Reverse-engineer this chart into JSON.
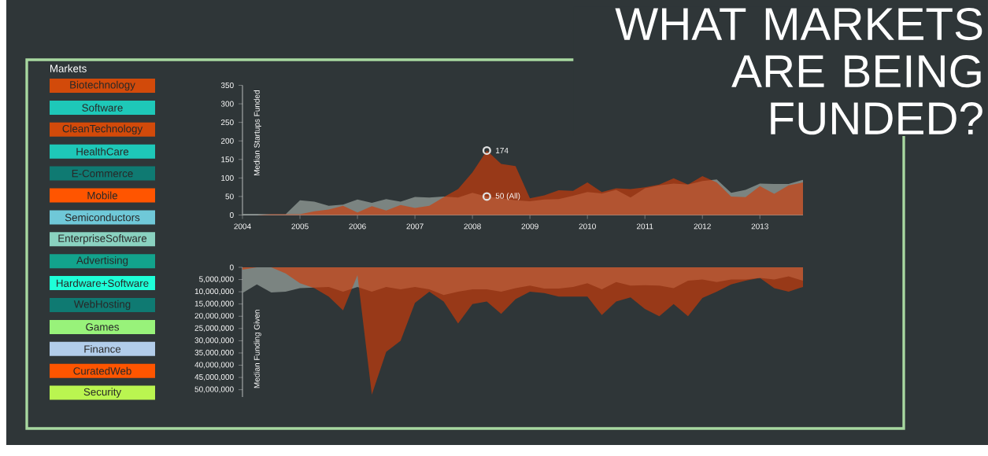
{
  "chart_data": [
    {
      "type": "other",
      "legend_title": "Markets",
      "categories": [
        "Biotechnology",
        "Software",
        "CleanTechnology",
        "HealthCare",
        "E-Commerce",
        "Mobile",
        "Semiconductors",
        "EnterpriseSoftware",
        "Advertising",
        "Hardware+Software",
        "WebHosting",
        "Games",
        "Finance",
        "CuratedWeb",
        "Security"
      ],
      "colors": [
        "#d24a0a",
        "#1ec8b8",
        "#d24a0a",
        "#1ec8b8",
        "#0f7a72",
        "#ff5500",
        "#6fc8d8",
        "#8ad2c0",
        "#12a38c",
        "#1effd8",
        "#0f7a72",
        "#98f27a",
        "#b2cdea",
        "#ff5500",
        "#baf550"
      ]
    },
    {
      "type": "area",
      "title": "WHAT MARKETS ARE BEING FUNDED?",
      "ylabel": "Median Startups Funded",
      "x": [
        "2004-01",
        "2004-04",
        "2004-07",
        "2004-10",
        "2005-01",
        "2005-04",
        "2005-07",
        "2005-10",
        "2006-01",
        "2006-04",
        "2006-07",
        "2006-10",
        "2007-01",
        "2007-04",
        "2007-07",
        "2007-10",
        "2008-01",
        "2008-04",
        "2008-07",
        "2008-10",
        "2009-01",
        "2009-04",
        "2009-07",
        "2009-10",
        "2010-01",
        "2010-04",
        "2010-07",
        "2010-10",
        "2011-01",
        "2011-04",
        "2011-07",
        "2011-10",
        "2012-01",
        "2012-04",
        "2012-07",
        "2012-10",
        "2013-01",
        "2013-04",
        "2013-07",
        "2013-10"
      ],
      "xlim": [
        "2004-01",
        "2013-10"
      ],
      "xticks": [
        "2004",
        "2005",
        "2006",
        "2007",
        "2008",
        "2009",
        "2010",
        "2011",
        "2012",
        "2013"
      ],
      "ylim": [
        0,
        350
      ],
      "yticks": [
        0,
        50,
        100,
        150,
        200,
        250,
        300,
        350
      ],
      "series": [
        {
          "color": "#7b8481",
          "values": [
            3,
            3,
            2,
            2,
            40,
            36,
            25,
            28,
            42,
            33,
            43,
            36,
            49,
            47,
            50,
            47,
            60,
            50,
            45,
            40,
            37,
            42,
            43,
            52,
            62,
            58,
            68,
            47,
            72,
            80,
            85,
            82,
            92,
            96,
            60,
            68,
            85,
            84,
            84,
            95
          ]
        },
        {
          "color": "#cf3b08",
          "values": [
            0,
            0,
            2,
            2,
            2,
            10,
            15,
            25,
            7,
            24,
            12,
            27,
            19,
            25,
            48,
            70,
            115,
            174,
            138,
            132,
            45,
            53,
            67,
            65,
            88,
            62,
            72,
            70,
            75,
            82,
            99,
            82,
            105,
            88,
            50,
            48,
            78,
            57,
            80,
            88
          ]
        }
      ],
      "annotations": [
        {
          "text": "174",
          "x": "2008-04",
          "y": 174
        },
        {
          "text": "50 (All)",
          "x": "2008-04",
          "y": 50
        }
      ]
    },
    {
      "type": "area",
      "ylabel": "Median Funding Given",
      "tick_labels": "y",
      "categories": [
        null,
        null,
        null,
        null,
        null,
        null,
        null,
        null,
        null,
        null,
        null,
        null,
        null,
        null,
        null,
        null,
        null,
        null,
        null,
        null,
        null,
        null,
        null,
        null,
        null,
        null,
        null,
        null,
        null,
        null,
        null,
        null,
        null,
        null,
        null,
        null,
        null,
        null,
        null,
        null
      ],
      "ylim": [
        53000000,
        0
      ],
      "yticks": [
        {
          "value": 0,
          "label": "0"
        },
        {
          "value": 5000000,
          "label": "5,000,000"
        },
        {
          "value": 10000000,
          "label": "10,000,000"
        },
        {
          "value": 15000000,
          "label": "15,000,000"
        },
        {
          "value": 20000000,
          "label": "20,000,000"
        },
        {
          "value": 25000000,
          "label": "25,000,000"
        },
        {
          "value": 30000000,
          "label": "30,000,000"
        },
        {
          "value": 35000000,
          "label": "35,000,000"
        },
        {
          "value": 40000000,
          "label": "40,000,000"
        },
        {
          "value": 45000000,
          "label": "45,000,000"
        },
        {
          "value": 50000000,
          "label": "50,000,000"
        }
      ],
      "series": [
        {
          "color": "#7b8481",
          "values": [
            10500000,
            7000000,
            10300000,
            10000000,
            8500000,
            8300000,
            8000000,
            10000000,
            8000000,
            10000000,
            8000000,
            9000000,
            8000000,
            9000000,
            11300000,
            10000000,
            9000000,
            9000000,
            10000000,
            8500000,
            7500000,
            8700000,
            8700000,
            8000000,
            6500000,
            9000000,
            6000000,
            7500000,
            7300000,
            7500000,
            8500000,
            5500000,
            5000000,
            6000000,
            5000000,
            5000000,
            4300000,
            5000000,
            3700000,
            5500000
          ]
        },
        {
          "color": "#cf3b08",
          "values": [
            1000000,
            0,
            0,
            2500000,
            6500000,
            8500000,
            12000000,
            17600000,
            3200000,
            52000000,
            34500000,
            30000000,
            14500000,
            10000000,
            14000000,
            23000000,
            15000000,
            14000000,
            19000000,
            13000000,
            10000000,
            10500000,
            12000000,
            12000000,
            12000000,
            19500000,
            14000000,
            12300000,
            17000000,
            20000000,
            15000000,
            20000000,
            12500000,
            10000000,
            7000000,
            5500000,
            4300000,
            8500000,
            10000000,
            8000000
          ]
        }
      ]
    }
  ]
}
